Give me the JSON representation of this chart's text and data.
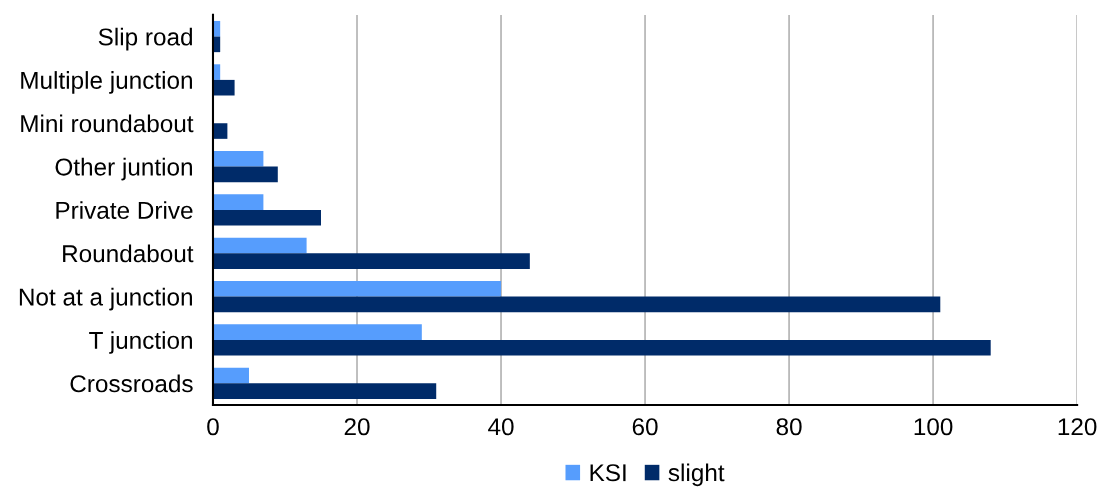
{
  "chart_data": {
    "type": "bar",
    "orientation": "horizontal",
    "categories": [
      "Slip road",
      "Multiple junction",
      "Mini roundabout",
      "Other juntion",
      "Private Drive",
      "Roundabout",
      "Not at a junction",
      "T junction",
      "Crossroads"
    ],
    "series": [
      {
        "name": "KSI",
        "color": "#569dfd",
        "values": [
          1,
          1,
          0,
          7,
          7,
          13,
          40,
          29,
          5
        ]
      },
      {
        "name": "slight",
        "color": "#002b69",
        "values": [
          1,
          3,
          2,
          9,
          15,
          44,
          101,
          108,
          31
        ]
      }
    ],
    "xlim": [
      0,
      120
    ],
    "xticks": [
      0,
      20,
      40,
      60,
      80,
      100,
      120
    ],
    "grid": "x",
    "legend": "bottom"
  }
}
